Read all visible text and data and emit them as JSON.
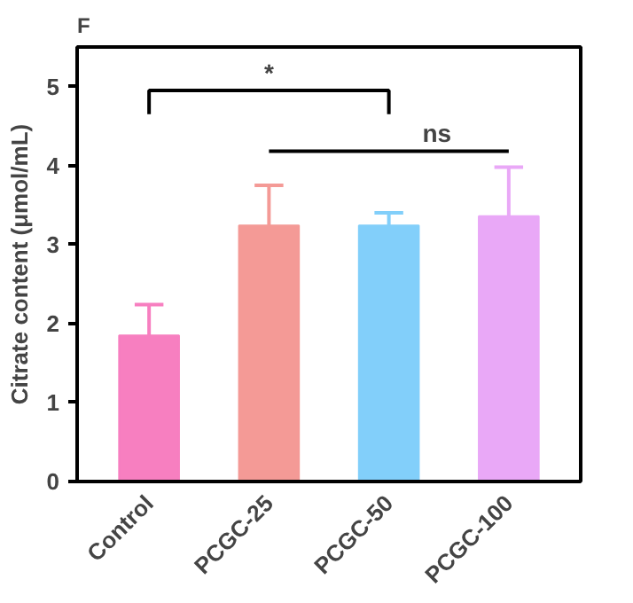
{
  "chart_data": {
    "type": "bar",
    "title": "F",
    "ylabel": "Citrate content (μmol/mL)",
    "categories": [
      "Control",
      "PCGC-25",
      "PCGC-50",
      "PCGC-100"
    ],
    "values": [
      1.85,
      3.24,
      3.24,
      3.36
    ],
    "colors": [
      "#f77fc0",
      "#f49a96",
      "#82cffa",
      "#e9a8f7"
    ],
    "errors": [
      [
        1.85,
        2.24
      ],
      [
        3.24,
        3.75
      ],
      [
        3.24,
        3.4
      ],
      [
        3.36,
        3.98
      ]
    ],
    "ylim": [
      0,
      5.5
    ],
    "yticks": [
      0,
      1,
      2,
      3,
      4,
      5
    ],
    "grid": false,
    "annotations": [
      "*",
      "ns"
    ]
  }
}
